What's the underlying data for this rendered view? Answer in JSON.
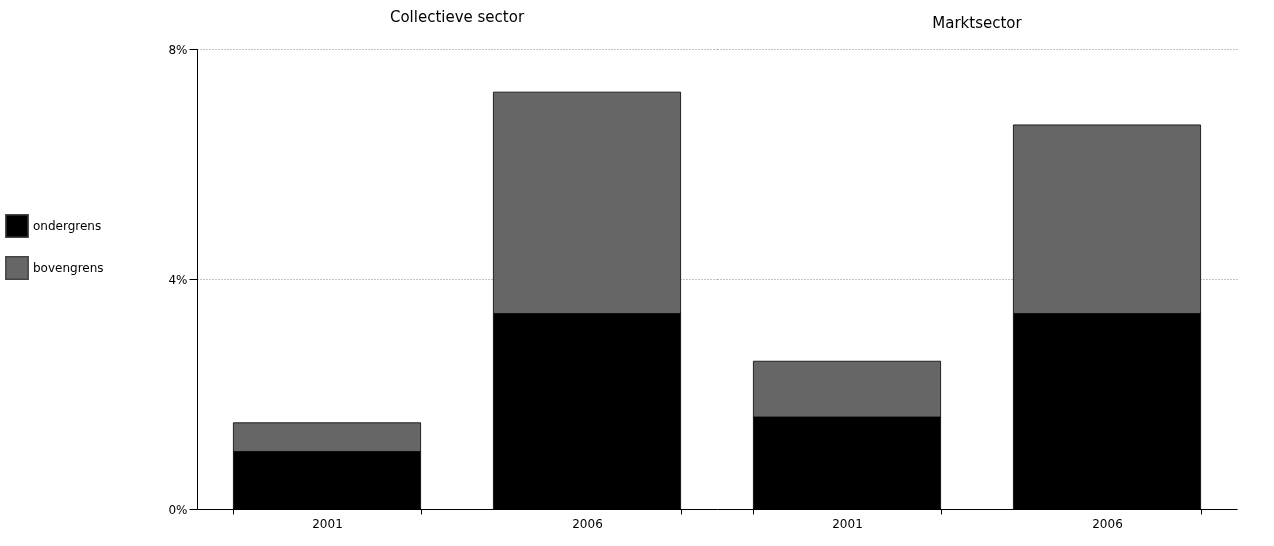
{
  "chart_data": [
    {
      "type": "bar",
      "title": "Collectieve sector",
      "categories": [
        "2001",
        "2006"
      ],
      "stacked": true,
      "series": [
        {
          "name": "ondergrens",
          "color": "#000000",
          "values": [
            1.0,
            3.4
          ]
        },
        {
          "name": "bovengrens",
          "color": "#666666",
          "values": [
            0.5,
            3.85
          ]
        }
      ],
      "ylim": [
        0,
        8
      ],
      "yticks": [
        {
          "value": 0,
          "label": "0%"
        },
        {
          "value": 4,
          "label": "4%"
        },
        {
          "value": 8,
          "label": "8%"
        }
      ],
      "grid": "y",
      "legend": "left"
    },
    {
      "type": "bar",
      "title": "Marktsector",
      "categories": [
        "2001",
        "2006"
      ],
      "stacked": true,
      "series": [
        {
          "color": "#000000",
          "values": [
            1.6,
            3.4
          ]
        },
        {
          "color": "#666666",
          "values": [
            0.97,
            3.28
          ]
        }
      ],
      "ylim": [
        0,
        8
      ],
      "yticks": [
        {
          "value": 0,
          "label": null
        },
        {
          "value": 4,
          "label": null
        },
        {
          "value": 8,
          "label": null
        }
      ],
      "grid": "y",
      "legend": false,
      "tick_labels": "x"
    }
  ]
}
